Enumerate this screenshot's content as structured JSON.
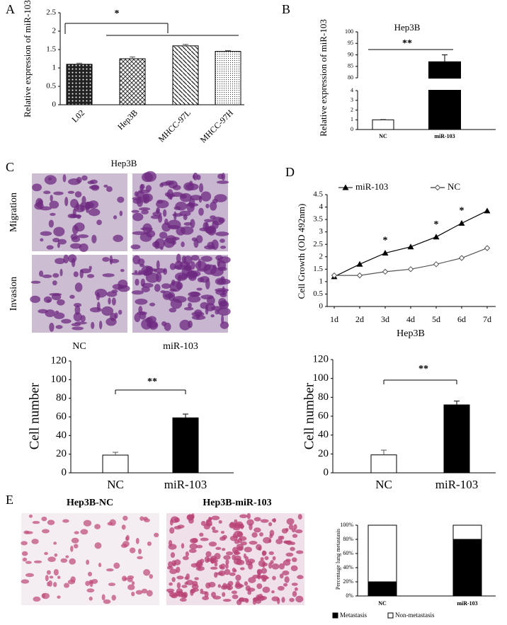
{
  "chart_data": [
    {
      "type": "bar",
      "panel": "A",
      "ylabel": "Relative expression of miR-103",
      "categories": [
        "L02",
        "Hep3B",
        "MHCC-97L",
        "MHCC-97H"
      ],
      "values": [
        1.1,
        1.25,
        1.6,
        1.45
      ],
      "errors": [
        0.03,
        0.05,
        0.04,
        0.02
      ],
      "color": "#000000",
      "ylim": [
        0,
        2.5
      ],
      "yticks": [
        0,
        0.5,
        1,
        1.5,
        2,
        2.5
      ],
      "annotation": "*"
    },
    {
      "type": "bar",
      "panel": "B",
      "title": "Hep3B",
      "ylabel": "Relative expression of miR-103",
      "categories": [
        "NC",
        "miR-103"
      ],
      "values": [
        1,
        87
      ],
      "errors": [
        0.05,
        3
      ],
      "colors": [
        "#ffffff",
        "#000000"
      ],
      "ylim": [
        0,
        100
      ],
      "axis_break": [
        4,
        80
      ],
      "yticks": [
        0,
        1,
        2,
        3,
        4,
        80,
        85,
        90,
        95,
        100
      ],
      "annotation": "**"
    },
    {
      "type": "bar",
      "panel": "C",
      "ylabel": "Cell number",
      "categories": [
        "NC",
        "miR-103"
      ],
      "values": [
        19,
        59
      ],
      "errors": [
        3,
        4
      ],
      "colors": [
        "#ffffff",
        "#000000"
      ],
      "ylim": [
        0,
        120
      ],
      "yticks": [
        0,
        20,
        40,
        60,
        80,
        100,
        120
      ],
      "annotation": "**"
    },
    {
      "type": "line",
      "panel": "D",
      "ylabel": "Cell Growth (OD 492nm)",
      "xlabel": "Hep3B",
      "categories": [
        "1d",
        "2d",
        "3d",
        "4d",
        "5d",
        "6d",
        "7d"
      ],
      "series": [
        {
          "name": "miR-103",
          "color": "#000000",
          "marker": "triangle",
          "values": [
            1.2,
            1.7,
            2.15,
            2.4,
            2.8,
            3.35,
            3.85
          ]
        },
        {
          "name": "NC",
          "color": "#555555",
          "marker": "diamond",
          "values": [
            1.25,
            1.25,
            1.4,
            1.5,
            1.7,
            1.95,
            2.35
          ]
        }
      ],
      "ylim": [
        0,
        4.5
      ],
      "yticks": [
        0,
        0.5,
        1,
        1.5,
        2,
        2.5,
        3,
        3.5,
        4,
        4.5
      ],
      "annotations": [
        "*",
        "*",
        "*"
      ]
    },
    {
      "type": "bar",
      "ylabel": "Cell number",
      "categories": [
        "NC",
        "miR-103"
      ],
      "values": [
        19,
        72
      ],
      "errors": [
        5,
        4
      ],
      "colors": [
        "#ffffff",
        "#000000"
      ],
      "ylim": [
        0,
        120
      ],
      "yticks": [
        0,
        20,
        40,
        60,
        80,
        100,
        120
      ],
      "annotation": "**"
    },
    {
      "type": "stacked_bar",
      "panel": "E",
      "ylabel": "Percentage lung metastasis",
      "categories": [
        "NC",
        "miR-103"
      ],
      "series": [
        {
          "name": "Metastasis",
          "color": "#000000",
          "values": [
            20,
            80
          ]
        },
        {
          "name": "Non-metastasis",
          "color": "#ffffff",
          "values": [
            80,
            20
          ]
        }
      ],
      "ylim": [
        0,
        100
      ],
      "yticks": [
        {
          "value": 0,
          "label": "0%"
        },
        {
          "value": 20,
          "label": "20%"
        },
        {
          "value": 40,
          "label": "40%"
        },
        {
          "value": 60,
          "label": "60%"
        },
        {
          "value": 80,
          "label": "80%"
        },
        {
          "value": 100,
          "label": "100%"
        }
      ]
    }
  ],
  "micrographs": {
    "transwell": {
      "title": "Hep3B",
      "rows": [
        "Migration",
        "Invasion"
      ],
      "columns": [
        "NC",
        "miR-103"
      ]
    },
    "lung": {
      "columns": [
        "Hep3B-NC",
        "Hep3B-miR-103"
      ]
    }
  }
}
